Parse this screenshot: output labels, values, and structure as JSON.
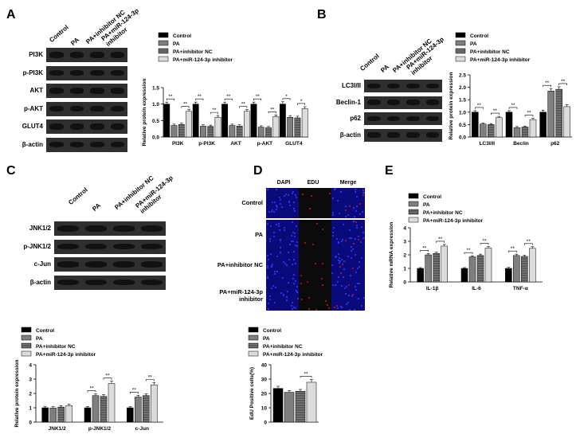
{
  "panels": {
    "A": "A",
    "B": "B",
    "C": "C",
    "D": "D",
    "E": "E"
  },
  "groups": [
    "Control",
    "PA",
    "PA+inhibitor NC",
    "PA+miR-124-3p inhibitor"
  ],
  "group_heads": {
    "g1": "Control",
    "g2": "PA",
    "g3": "PA+inhibitor NC",
    "g4a": "PA+miR-124-3p",
    "g4b": "inhibitor"
  },
  "blotA": {
    "rows": [
      "PI3K",
      "p-PI3K",
      "AKT",
      "p-AKT",
      "GLUT4",
      "β-actin"
    ]
  },
  "blotB": {
    "rows": [
      "LC3I/II",
      "Beclin-1",
      "p62",
      "β-actin"
    ]
  },
  "blotC": {
    "rows": [
      "JNK1/2",
      "p-JNK1/2",
      "c-Jun",
      "β-actin"
    ]
  },
  "microscopy": {
    "columns": [
      "DAPI",
      "EDU",
      "Merge"
    ],
    "rows": [
      "Control",
      "PA",
      "PA+inhibitor NC",
      "PA+miR-124-3p inhibitor"
    ],
    "row_line1": [
      "Control",
      "PA",
      "PA+inhibitor NC",
      "PA+miR-124-3p"
    ],
    "row_line2": [
      "",
      "",
      "",
      "inhibitor"
    ]
  },
  "colors": {
    "control": "#000000",
    "pa": "#7f7f7f",
    "nc": "#4a4a4a",
    "inhib": "#dcdcdc"
  },
  "chart_data": [
    {
      "id": "A",
      "type": "bar",
      "ylabel": "Relative protein expression",
      "ylim": [
        0,
        1.5
      ],
      "yticks": [
        "0.0",
        "0.5",
        "1.0",
        "1.5"
      ],
      "categories": [
        "PI3K",
        "p-PI3K",
        "AKT",
        "p-AKT",
        "GLUT4"
      ],
      "series": [
        {
          "name": "Control",
          "values": [
            1.0,
            1.0,
            1.0,
            1.0,
            1.0
          ]
        },
        {
          "name": "PA",
          "values": [
            0.35,
            0.33,
            0.35,
            0.3,
            0.6
          ]
        },
        {
          "name": "PA+inhibitor NC",
          "values": [
            0.38,
            0.32,
            0.33,
            0.28,
            0.58
          ]
        },
        {
          "name": "PA+miR-124-3p inhibitor",
          "values": [
            0.78,
            0.6,
            0.78,
            0.62,
            0.86
          ]
        }
      ],
      "errors": [
        [
          0.06,
          0.06,
          0.06,
          0.06,
          0.07
        ],
        [
          0.04,
          0.04,
          0.04,
          0.04,
          0.05
        ],
        [
          0.04,
          0.04,
          0.04,
          0.04,
          0.05
        ],
        [
          0.05,
          0.05,
          0.05,
          0.05,
          0.06
        ]
      ],
      "annotations": [
        "**",
        "**",
        "**",
        "**",
        "**",
        "**",
        "**",
        "**",
        "*",
        "*"
      ]
    },
    {
      "id": "B",
      "type": "bar",
      "ylabel": "Relative protein expression",
      "ylim": [
        0,
        2.5
      ],
      "yticks": [
        "0.0",
        "0.5",
        "1.0",
        "1.5",
        "2.0",
        "2.5"
      ],
      "categories": [
        "LC3I/II",
        "Beclin",
        "p62"
      ],
      "series": [
        {
          "name": "Control",
          "values": [
            1.0,
            1.0,
            1.0
          ]
        },
        {
          "name": "PA",
          "values": [
            0.52,
            0.38,
            1.85
          ]
        },
        {
          "name": "PA+inhibitor NC",
          "values": [
            0.5,
            0.4,
            1.92
          ]
        },
        {
          "name": "PA+miR-124-3p inhibitor",
          "values": [
            0.78,
            0.7,
            1.22
          ]
        }
      ],
      "errors": [
        [
          0.06,
          0.06,
          0.08
        ],
        [
          0.04,
          0.04,
          0.1
        ],
        [
          0.04,
          0.04,
          0.1
        ],
        [
          0.05,
          0.05,
          0.08
        ]
      ],
      "annotations": [
        "**",
        "**",
        "**",
        "**",
        "**",
        "**"
      ]
    },
    {
      "id": "C",
      "type": "bar",
      "ylabel": "Relative protein expression",
      "ylim": [
        0,
        4
      ],
      "yticks": [
        "0",
        "1",
        "2",
        "3",
        "4"
      ],
      "categories": [
        "JNK1/2",
        "p-JNK1/2",
        "c-Jun"
      ],
      "series": [
        {
          "name": "Control",
          "values": [
            1.0,
            1.0,
            1.0
          ]
        },
        {
          "name": "PA",
          "values": [
            0.98,
            1.85,
            1.75
          ]
        },
        {
          "name": "PA+inhibitor NC",
          "values": [
            1.05,
            1.8,
            1.85
          ]
        },
        {
          "name": "PA+miR-124-3p inhibitor",
          "values": [
            1.15,
            2.7,
            2.6
          ]
        }
      ],
      "errors": [
        [
          0.08,
          0.08,
          0.08
        ],
        [
          0.1,
          0.12,
          0.12
        ],
        [
          0.1,
          0.12,
          0.12
        ],
        [
          0.1,
          0.15,
          0.15
        ]
      ],
      "annotations": [
        "**",
        "**",
        "**",
        "**"
      ]
    },
    {
      "id": "D",
      "type": "bar",
      "ylabel": "EdU Positive cells(%)",
      "ylim": [
        0,
        40
      ],
      "yticks": [
        "0",
        "10",
        "20",
        "30",
        "40"
      ],
      "categories": [
        ""
      ],
      "series": [
        {
          "name": "Control",
          "values": [
            23.5
          ]
        },
        {
          "name": "PA",
          "values": [
            20.8
          ]
        },
        {
          "name": "PA+inhibitor NC",
          "values": [
            21.5
          ]
        },
        {
          "name": "PA+miR-124-3p inhibitor",
          "values": [
            27.8
          ]
        }
      ],
      "errors": [
        [
          1.5
        ],
        [
          1.2
        ],
        [
          1.3
        ],
        [
          2.0
        ]
      ],
      "annotations": [
        "**"
      ]
    },
    {
      "id": "E",
      "type": "bar",
      "ylabel": "Relative mRNA expression",
      "ylim": [
        0,
        4
      ],
      "yticks": [
        "0",
        "1",
        "2",
        "3",
        "4"
      ],
      "categories": [
        "IL-1β",
        "IL-6",
        "TNF-α"
      ],
      "series": [
        {
          "name": "Control",
          "values": [
            1.0,
            1.0,
            1.0
          ]
        },
        {
          "name": "PA",
          "values": [
            2.0,
            1.85,
            1.95
          ]
        },
        {
          "name": "PA+inhibitor NC",
          "values": [
            2.1,
            1.95,
            1.88
          ]
        },
        {
          "name": "PA+miR-124-3p inhibitor",
          "values": [
            2.65,
            2.5,
            2.48
          ]
        }
      ],
      "errors": [
        [
          0.06,
          0.06,
          0.08
        ],
        [
          0.1,
          0.08,
          0.1
        ],
        [
          0.1,
          0.1,
          0.1
        ],
        [
          0.12,
          0.12,
          0.12
        ]
      ],
      "annotations": [
        "**",
        "**",
        "**",
        "**",
        "**",
        "**"
      ]
    }
  ]
}
